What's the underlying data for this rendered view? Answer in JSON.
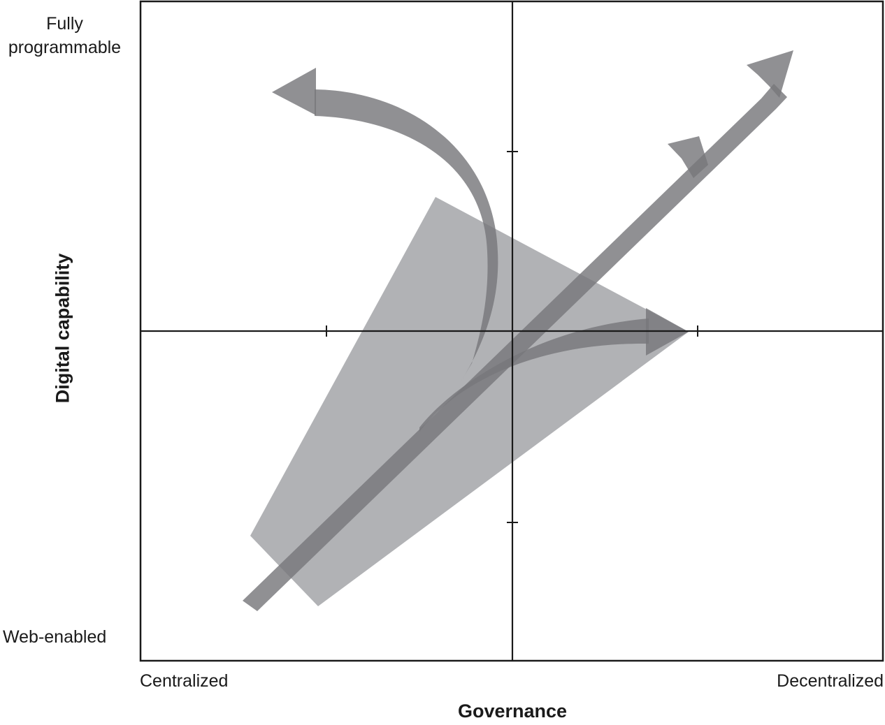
{
  "axes": {
    "x_title": "Governance",
    "y_title": "Digital capability",
    "x_low": "Centralized",
    "x_high": "Decentralized",
    "y_high_line1": "Fully",
    "y_high_line2": "programmable",
    "y_low": "Web-enabled"
  },
  "colors": {
    "frame": "#1a1a1a",
    "zone": "#b1b2b5",
    "arrow": "#77787b",
    "overlap": "#5f6064"
  }
}
